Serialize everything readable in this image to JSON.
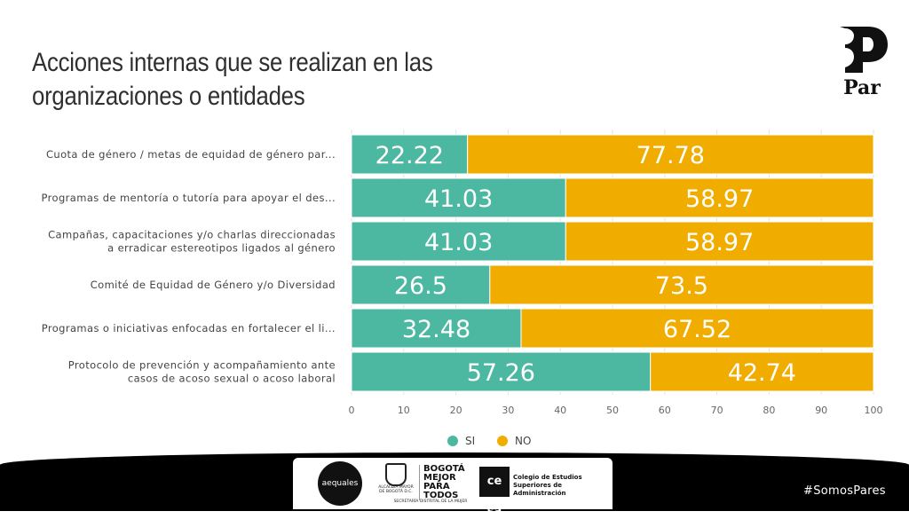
{
  "title": "Acciones internas que se realizan en las organizaciones o entidades",
  "logo": {
    "text": "Par"
  },
  "chart_data": {
    "type": "bar",
    "orientation": "horizontal",
    "stacked": true,
    "categories": [
      [
        "Cuota de género / metas de equidad de género par..."
      ],
      [
        "Programas de mentoría o tutoría para apoyar el des..."
      ],
      [
        "Campañas, capacitaciones y/o charlas direccionadas",
        "a erradicar estereotipos ligados al género"
      ],
      [
        "Comité de Equidad de Género y/o Diversidad"
      ],
      [
        "Programas o iniciativas enfocadas en fortalecer el li..."
      ],
      [
        "Protocolo de prevención y acompañamiento ante",
        "casos de acoso sexual o acoso laboral"
      ]
    ],
    "series": [
      {
        "name": "SI",
        "color": "#4db8a1",
        "values": [
          22.22,
          41.03,
          41.03,
          26.5,
          32.48,
          57.26
        ]
      },
      {
        "name": "NO",
        "color": "#f0ad00",
        "values": [
          77.78,
          58.97,
          58.97,
          73.5,
          67.52,
          42.74
        ]
      }
    ],
    "xlim": [
      0,
      100
    ],
    "xticks": [
      0,
      10,
      20,
      30,
      40,
      50,
      60,
      70,
      80,
      90,
      100
    ],
    "legend": "bottom-center",
    "grid": true
  },
  "footer": {
    "aequales": "aequales",
    "alcaldia": "ALCALDÍA MAYOR DE BOGOTÁ D.C.",
    "bogota": "BOGOTÁ MEJOR PARA TODOS",
    "secretaria": "SECRETARÍA DISTRITAL DE LA MUJER",
    "cesa_mark": "ce sa",
    "cesa_name": "Colegio de Estudios Superiores de Administración",
    "hashtag": "#SomosPares"
  }
}
